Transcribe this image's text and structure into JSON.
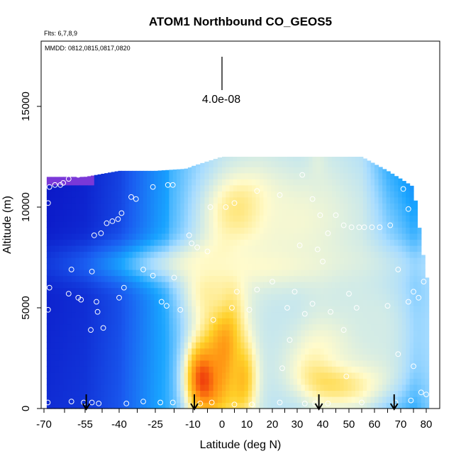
{
  "chart_data": {
    "type": "heatmap",
    "title": "ATOM1 Northbound CO_GEOS5",
    "flights_note": "Flts: 6,7,8,9",
    "dates_note": "MMDD: 0812,0815,0817,0820",
    "xlabel": "Latitude (deg N)",
    "ylabel": "Altitude (m)",
    "xlim": [
      -70,
      80
    ],
    "ylim": [
      0,
      17500
    ],
    "x_tick_labels": [
      "-70",
      "-55",
      "-40",
      "-25",
      "-10",
      "0",
      "10",
      "20",
      "30",
      "40",
      "50",
      "60",
      "70",
      "80"
    ],
    "y_ticks": [
      0,
      5000,
      10000,
      15000
    ],
    "y_tick_labels": [
      "0",
      "5000",
      "10000",
      "15000"
    ],
    "scale_label": "4.0e-08",
    "colors": {
      "deep_blue": "#0a12c4",
      "mid_blue": "#1a5cf0",
      "sky_blue": "#19a4ff",
      "light_blue": "#a8dcff",
      "pale": "#fffbcc",
      "yellow": "#ffd028",
      "orange": "#ff8a10",
      "red": "#e81a0a",
      "violet": "#7a38d8"
    },
    "field": {
      "base_columns": [
        {
          "lat": -69,
          "top": 11500,
          "value": 0.05
        },
        {
          "lat": -55,
          "top": 11500,
          "value": 0.07
        },
        {
          "lat": -40,
          "top": 11800,
          "value": 0.13
        },
        {
          "lat": -25,
          "top": 11800,
          "value": 0.27
        },
        {
          "lat": -13,
          "top": 11900,
          "value": 0.36
        },
        {
          "lat": 0,
          "top": 12500,
          "value": 0.45
        },
        {
          "lat": 15,
          "top": 12500,
          "value": 0.47
        },
        {
          "lat": 30,
          "top": 12500,
          "value": 0.44
        },
        {
          "lat": 40,
          "top": 12500,
          "value": 0.47
        },
        {
          "lat": 55,
          "top": 12500,
          "value": 0.43
        },
        {
          "lat": 65,
          "top": 11800,
          "value": 0.27
        },
        {
          "lat": 75,
          "top": 11000,
          "value": 0.2
        },
        {
          "lat": 80,
          "top": 6500,
          "value": 0.33
        }
      ],
      "features": [
        {
          "lat": -6,
          "alt": 1500,
          "wlat": 5,
          "walt": 1400,
          "value": 0.98
        },
        {
          "lat": 1,
          "alt": 3500,
          "wlat": 5,
          "walt": 2500,
          "value": 0.88
        },
        {
          "lat": 8,
          "alt": 1500,
          "wlat": 4,
          "walt": 1400,
          "value": 0.76
        },
        {
          "lat": -3,
          "alt": 6000,
          "wlat": 8,
          "walt": 1500,
          "value": 0.62
        },
        {
          "lat": 49,
          "alt": 1700,
          "wlat": 11,
          "walt": 900,
          "value": 1.0
        },
        {
          "lat": 47,
          "alt": 3000,
          "wlat": 12,
          "walt": 1200,
          "value": 0.66
        },
        {
          "lat": 9,
          "alt": 9800,
          "wlat": 9,
          "walt": 1200,
          "value": 0.72
        },
        {
          "lat": 15,
          "alt": 7200,
          "wlat": 38,
          "walt": 700,
          "value": 0.58
        },
        {
          "lat": 30,
          "alt": 9200,
          "wlat": 20,
          "walt": 2200,
          "value": 0.56
        },
        {
          "lat": 60,
          "alt": 4200,
          "wlat": 18,
          "walt": 3500,
          "value": 0.5
        },
        {
          "lat": 38,
          "alt": 12000,
          "wlat": 2,
          "walt": 900,
          "value": 0.52
        }
      ]
    },
    "sample_points": [
      {
        "lat": -68.6,
        "alt": 300
      },
      {
        "lat": -60,
        "alt": 350
      },
      {
        "lat": -55.5,
        "alt": 300
      },
      {
        "lat": -52,
        "alt": 300
      },
      {
        "lat": -49,
        "alt": 250
      },
      {
        "lat": -37,
        "alt": 250
      },
      {
        "lat": -30,
        "alt": 350
      },
      {
        "lat": -23,
        "alt": 300
      },
      {
        "lat": -18,
        "alt": 300
      },
      {
        "lat": -7.5,
        "alt": 250
      },
      {
        "lat": -3.5,
        "alt": 300
      },
      {
        "lat": 5,
        "alt": 200
      },
      {
        "lat": 12,
        "alt": 200
      },
      {
        "lat": 23,
        "alt": 300
      },
      {
        "lat": 33,
        "alt": 250
      },
      {
        "lat": 37,
        "alt": 250
      },
      {
        "lat": 42,
        "alt": 250
      },
      {
        "lat": 55,
        "alt": 300
      },
      {
        "lat": 68,
        "alt": 300
      },
      {
        "lat": 74,
        "alt": 400
      },
      {
        "lat": 80,
        "alt": 700
      },
      {
        "lat": -68.5,
        "alt": 4900
      },
      {
        "lat": -68,
        "alt": 6000
      },
      {
        "lat": -61,
        "alt": 5700
      },
      {
        "lat": -57.5,
        "alt": 5500
      },
      {
        "lat": -56.5,
        "alt": 5400
      },
      {
        "lat": -50,
        "alt": 5300
      },
      {
        "lat": -47,
        "alt": 4000
      },
      {
        "lat": -52.5,
        "alt": 3900
      },
      {
        "lat": -49.5,
        "alt": 4800
      },
      {
        "lat": -40,
        "alt": 5500
      },
      {
        "lat": -38,
        "alt": 6000
      },
      {
        "lat": -30,
        "alt": 6900
      },
      {
        "lat": -26,
        "alt": 6600
      },
      {
        "lat": -22.5,
        "alt": 5300
      },
      {
        "lat": -17.5,
        "alt": 6500
      },
      {
        "lat": -20.5,
        "alt": 5100
      },
      {
        "lat": -15,
        "alt": 4900
      },
      {
        "lat": -8.5,
        "alt": 8000
      },
      {
        "lat": -5,
        "alt": 7800
      },
      {
        "lat": -11.5,
        "alt": 8600
      },
      {
        "lat": -10.5,
        "alt": 8200
      },
      {
        "lat": -60,
        "alt": 6900
      },
      {
        "lat": -52,
        "alt": 6800
      },
      {
        "lat": -48,
        "alt": 8700
      },
      {
        "lat": -51,
        "alt": 8600
      },
      {
        "lat": -39,
        "alt": 9700
      },
      {
        "lat": -43,
        "alt": 9300
      },
      {
        "lat": -40.5,
        "alt": 9400
      },
      {
        "lat": -45.5,
        "alt": 9200
      },
      {
        "lat": -35,
        "alt": 10500
      },
      {
        "lat": -33,
        "alt": 10400
      },
      {
        "lat": -26,
        "alt": 11000
      },
      {
        "lat": -18,
        "alt": 11100
      },
      {
        "lat": -20,
        "alt": 11100
      },
      {
        "lat": -11.5,
        "alt": 12100
      },
      {
        "lat": -4,
        "alt": 10000
      },
      {
        "lat": 1.5,
        "alt": 10000
      },
      {
        "lat": 5,
        "alt": 10200
      },
      {
        "lat": 14,
        "alt": 10800
      },
      {
        "lat": 23,
        "alt": 10600
      },
      {
        "lat": 32,
        "alt": 11600
      },
      {
        "lat": 36,
        "alt": 10400
      },
      {
        "lat": 39,
        "alt": 9600
      },
      {
        "lat": 42,
        "alt": 8700
      },
      {
        "lat": 45,
        "alt": 9600
      },
      {
        "lat": 48,
        "alt": 9100
      },
      {
        "lat": 51,
        "alt": 9000
      },
      {
        "lat": 54,
        "alt": 9000
      },
      {
        "lat": 56,
        "alt": 9000
      },
      {
        "lat": 59,
        "alt": 9000
      },
      {
        "lat": 62,
        "alt": 9000
      },
      {
        "lat": 66,
        "alt": 9100
      },
      {
        "lat": 73,
        "alt": 9900
      },
      {
        "lat": 77,
        "alt": 10600
      },
      {
        "lat": 76,
        "alt": 11900
      },
      {
        "lat": 71,
        "alt": 10900
      },
      {
        "lat": -63,
        "alt": 11200
      },
      {
        "lat": -64,
        "alt": 11100
      },
      {
        "lat": -66,
        "alt": 11100
      },
      {
        "lat": -68,
        "alt": 11000
      },
      {
        "lat": -61,
        "alt": 11400
      },
      {
        "lat": -57.5,
        "alt": 11600
      },
      {
        "lat": -68.5,
        "alt": 10200
      },
      {
        "lat": -3,
        "alt": 4400
      },
      {
        "lat": 4,
        "alt": 5000
      },
      {
        "lat": 6,
        "alt": 5800
      },
      {
        "lat": 11,
        "alt": 4900
      },
      {
        "lat": 14,
        "alt": 5900
      },
      {
        "lat": 20,
        "alt": 6300
      },
      {
        "lat": 26,
        "alt": 5000
      },
      {
        "lat": 29,
        "alt": 5800
      },
      {
        "lat": 33,
        "alt": 4700
      },
      {
        "lat": 36,
        "alt": 5200
      },
      {
        "lat": 40,
        "alt": 7300
      },
      {
        "lat": 43,
        "alt": 4800
      },
      {
        "lat": 48,
        "alt": 3900
      },
      {
        "lat": 50,
        "alt": 5700
      },
      {
        "lat": 53,
        "alt": 5000
      },
      {
        "lat": 65,
        "alt": 5100
      },
      {
        "lat": 69,
        "alt": 6900
      },
      {
        "lat": 75,
        "alt": 5800
      },
      {
        "lat": 77,
        "alt": 5500
      },
      {
        "lat": 79,
        "alt": 6300
      },
      {
        "lat": 73,
        "alt": 5300
      },
      {
        "lat": 27,
        "alt": 3400
      },
      {
        "lat": 31,
        "alt": 8100
      },
      {
        "lat": 38,
        "alt": 7900
      },
      {
        "lat": 24,
        "alt": 2000
      },
      {
        "lat": 49,
        "alt": 1600
      },
      {
        "lat": 69,
        "alt": 2700
      },
      {
        "lat": 75,
        "alt": 2100
      },
      {
        "lat": 78,
        "alt": 800
      }
    ],
    "arrows_lat": [
      -54.5,
      -9.5,
      38.5,
      67.5
    ]
  }
}
